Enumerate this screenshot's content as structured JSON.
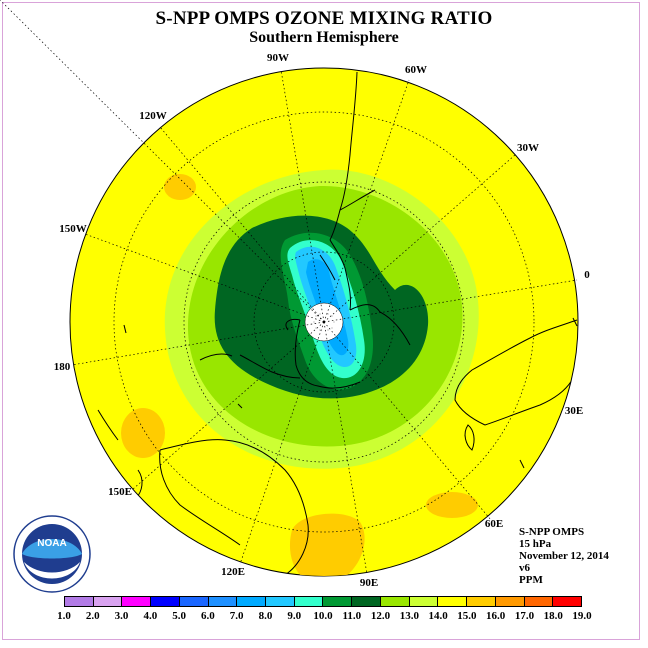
{
  "title": "S-NPP OMPS OZONE MIXING RATIO",
  "subtitle": "Southern Hemisphere",
  "longitude_labels": [
    "90W",
    "60W",
    "30W",
    "0",
    "30E",
    "60E",
    "90E",
    "120E",
    "150E",
    "180",
    "150W",
    "120W"
  ],
  "info": {
    "instrument": "S-NPP OMPS",
    "level": "15 hPa",
    "date": "November 12, 2014",
    "version": "v6",
    "units": "PPM"
  },
  "colorbar": {
    "labels": [
      "1.0",
      "2.0",
      "3.0",
      "4.0",
      "5.0",
      "6.0",
      "7.0",
      "8.0",
      "9.0",
      "10.0",
      "11.0",
      "12.0",
      "13.0",
      "14.0",
      "15.0",
      "16.0",
      "17.0",
      "18.0",
      "19.0"
    ],
    "colors": [
      "#b27be6",
      "#d9a3f0",
      "#ff00ff",
      "#0000ff",
      "#1a66ff",
      "#1e90ff",
      "#00aaff",
      "#22c8ff",
      "#33ffcc",
      "#009933",
      "#006622",
      "#99e600",
      "#ccff33",
      "#ffff00",
      "#ffcc00",
      "#ff9900",
      "#ff6600",
      "#ff0000",
      "#8b5a2b"
    ]
  },
  "logo": {
    "text": "NOAA",
    "ring_text": "NATIONAL OCEANIC AND ATMOSPHERIC ADMINISTRATION",
    "bottom_text": "U.S. DEPARTMENT OF COMMERCE"
  },
  "colors": {
    "background_field": "#ffff00",
    "frame": "#d9a3d9"
  }
}
